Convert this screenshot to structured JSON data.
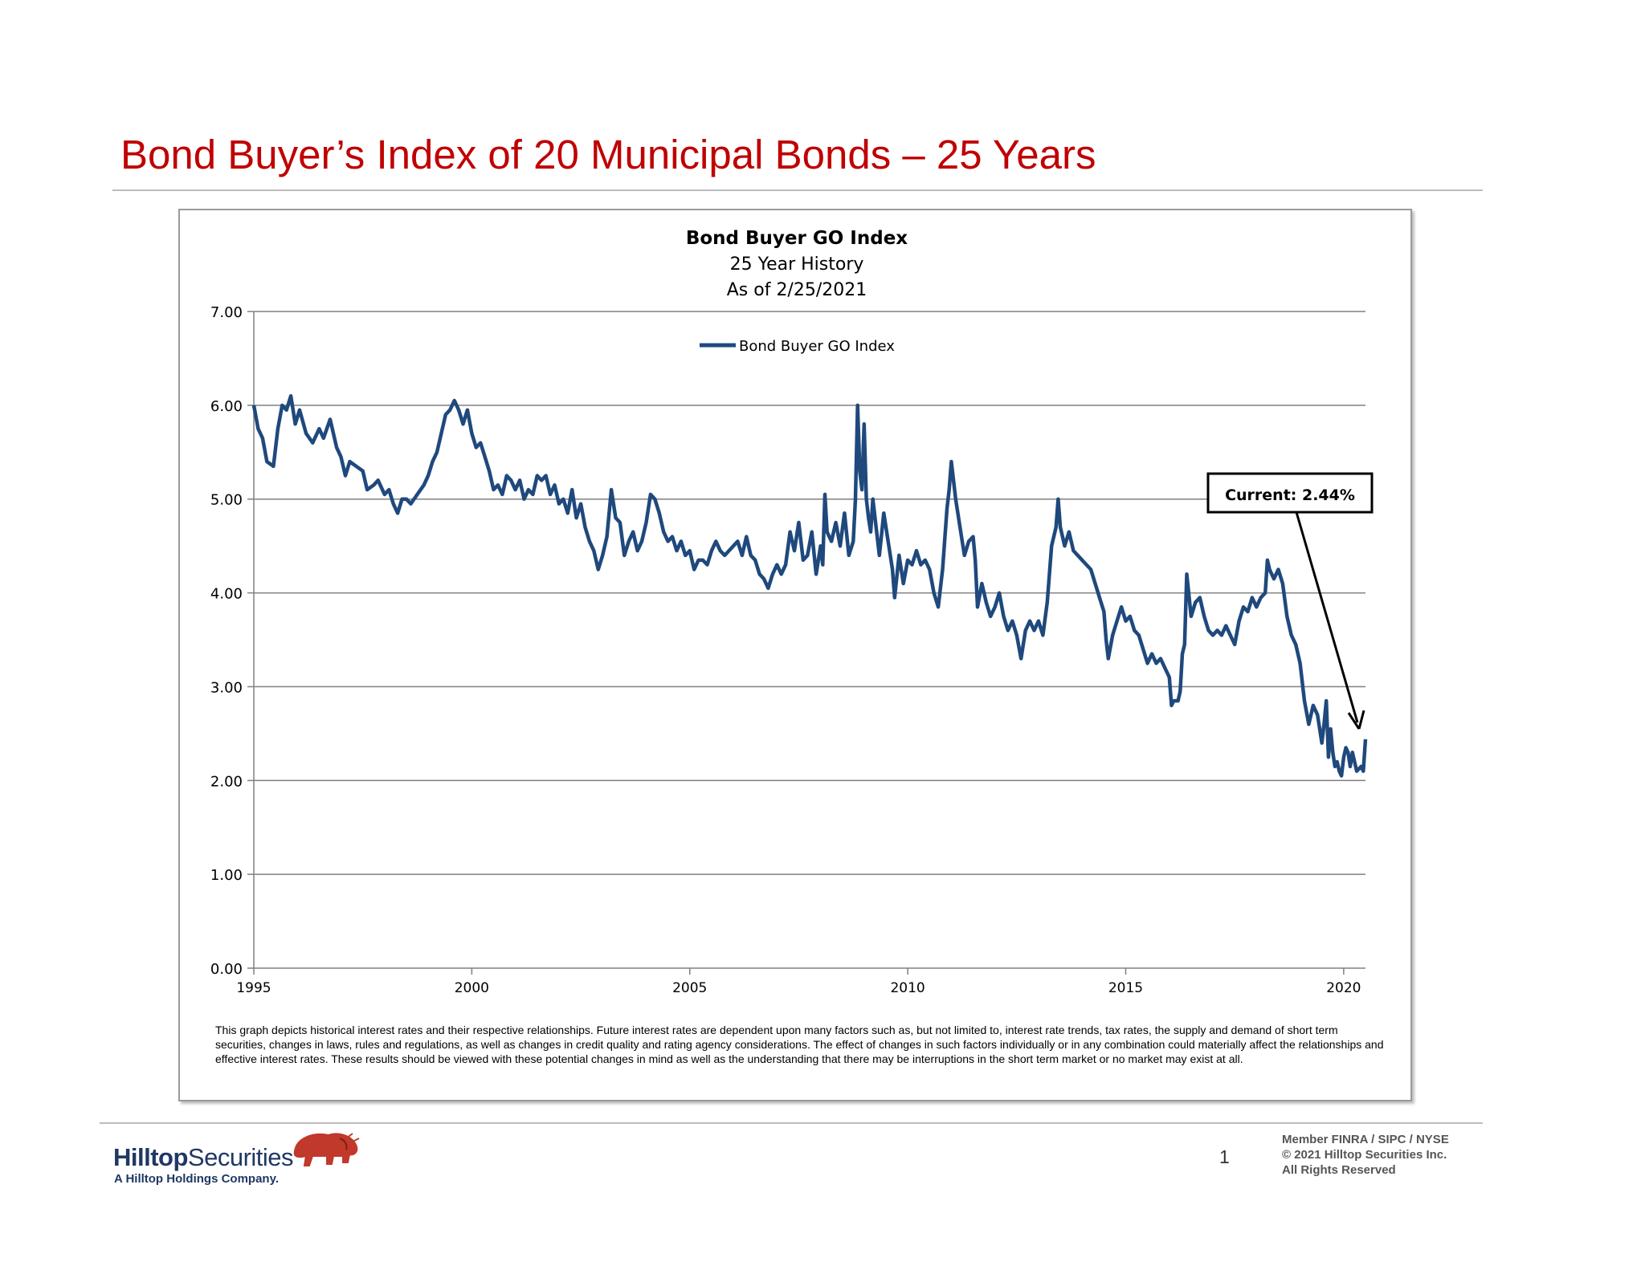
{
  "slide": {
    "title": "Bond Buyer’s Index of 20 Municipal Bonds – 25 Years"
  },
  "chart_data": {
    "type": "line",
    "title": "Bond Buyer GO Index",
    "subtitle_lines": [
      "25 Year History",
      "As of 2/25/2021"
    ],
    "xlabel": "",
    "ylabel": "",
    "xlim": [
      1995,
      2020.5
    ],
    "ylim": [
      0,
      7
    ],
    "x_ticks": [
      "1995",
      "2000",
      "2005",
      "2010",
      "2015",
      "2020"
    ],
    "y_ticks": [
      "0.00",
      "1.00",
      "2.00",
      "3.00",
      "4.00",
      "5.00",
      "6.00",
      "7.00"
    ],
    "grid": true,
    "legend_position": "top-center",
    "series": [
      {
        "name": "Bond Buyer GO Index",
        "color": "#1f497d",
        "points": [
          [
            1995.0,
            6.0
          ],
          [
            1995.1,
            5.75
          ],
          [
            1995.2,
            5.65
          ],
          [
            1995.3,
            5.4
          ],
          [
            1995.45,
            5.35
          ],
          [
            1995.55,
            5.75
          ],
          [
            1995.65,
            6.0
          ],
          [
            1995.75,
            5.95
          ],
          [
            1995.85,
            6.1
          ],
          [
            1995.95,
            5.8
          ],
          [
            1996.05,
            5.95
          ],
          [
            1996.2,
            5.7
          ],
          [
            1996.35,
            5.6
          ],
          [
            1996.5,
            5.75
          ],
          [
            1996.6,
            5.65
          ],
          [
            1996.75,
            5.85
          ],
          [
            1996.9,
            5.55
          ],
          [
            1997.0,
            5.45
          ],
          [
            1997.1,
            5.25
          ],
          [
            1997.2,
            5.4
          ],
          [
            1997.35,
            5.35
          ],
          [
            1997.5,
            5.3
          ],
          [
            1997.6,
            5.1
          ],
          [
            1997.75,
            5.15
          ],
          [
            1997.85,
            5.2
          ],
          [
            1998.0,
            5.05
          ],
          [
            1998.1,
            5.1
          ],
          [
            1998.2,
            4.95
          ],
          [
            1998.3,
            4.85
          ],
          [
            1998.4,
            5.0
          ],
          [
            1998.5,
            5.0
          ],
          [
            1998.6,
            4.95
          ],
          [
            1998.75,
            5.05
          ],
          [
            1998.9,
            5.15
          ],
          [
            1999.0,
            5.25
          ],
          [
            1999.1,
            5.4
          ],
          [
            1999.2,
            5.5
          ],
          [
            1999.3,
            5.7
          ],
          [
            1999.4,
            5.9
          ],
          [
            1999.5,
            5.95
          ],
          [
            1999.6,
            6.05
          ],
          [
            1999.7,
            5.95
          ],
          [
            1999.8,
            5.8
          ],
          [
            1999.9,
            5.95
          ],
          [
            2000.0,
            5.7
          ],
          [
            2000.1,
            5.55
          ],
          [
            2000.2,
            5.6
          ],
          [
            2000.3,
            5.45
          ],
          [
            2000.4,
            5.3
          ],
          [
            2000.5,
            5.1
          ],
          [
            2000.6,
            5.15
          ],
          [
            2000.7,
            5.05
          ],
          [
            2000.8,
            5.25
          ],
          [
            2000.9,
            5.2
          ],
          [
            2001.0,
            5.1
          ],
          [
            2001.1,
            5.2
          ],
          [
            2001.2,
            5.0
          ],
          [
            2001.3,
            5.1
          ],
          [
            2001.4,
            5.05
          ],
          [
            2001.5,
            5.25
          ],
          [
            2001.6,
            5.2
          ],
          [
            2001.7,
            5.25
          ],
          [
            2001.8,
            5.05
          ],
          [
            2001.9,
            5.15
          ],
          [
            2002.0,
            4.95
          ],
          [
            2002.1,
            5.0
          ],
          [
            2002.2,
            4.85
          ],
          [
            2002.3,
            5.1
          ],
          [
            2002.4,
            4.8
          ],
          [
            2002.5,
            4.95
          ],
          [
            2002.6,
            4.7
          ],
          [
            2002.7,
            4.55
          ],
          [
            2002.8,
            4.45
          ],
          [
            2002.9,
            4.25
          ],
          [
            2003.0,
            4.4
          ],
          [
            2003.1,
            4.6
          ],
          [
            2003.2,
            5.1
          ],
          [
            2003.3,
            4.8
          ],
          [
            2003.4,
            4.75
          ],
          [
            2003.5,
            4.4
          ],
          [
            2003.6,
            4.55
          ],
          [
            2003.7,
            4.65
          ],
          [
            2003.8,
            4.45
          ],
          [
            2003.9,
            4.55
          ],
          [
            2004.0,
            4.75
          ],
          [
            2004.1,
            5.05
          ],
          [
            2004.2,
            5.0
          ],
          [
            2004.3,
            4.85
          ],
          [
            2004.4,
            4.65
          ],
          [
            2004.5,
            4.55
          ],
          [
            2004.6,
            4.6
          ],
          [
            2004.7,
            4.45
          ],
          [
            2004.8,
            4.55
          ],
          [
            2004.9,
            4.4
          ],
          [
            2005.0,
            4.45
          ],
          [
            2005.1,
            4.25
          ],
          [
            2005.2,
            4.35
          ],
          [
            2005.3,
            4.35
          ],
          [
            2005.4,
            4.3
          ],
          [
            2005.5,
            4.45
          ],
          [
            2005.6,
            4.55
          ],
          [
            2005.7,
            4.45
          ],
          [
            2005.8,
            4.4
          ],
          [
            2005.9,
            4.45
          ],
          [
            2006.0,
            4.5
          ],
          [
            2006.1,
            4.55
          ],
          [
            2006.2,
            4.4
          ],
          [
            2006.3,
            4.6
          ],
          [
            2006.4,
            4.4
          ],
          [
            2006.5,
            4.35
          ],
          [
            2006.6,
            4.2
          ],
          [
            2006.7,
            4.15
          ],
          [
            2006.8,
            4.05
          ],
          [
            2006.9,
            4.2
          ],
          [
            2007.0,
            4.3
          ],
          [
            2007.1,
            4.2
          ],
          [
            2007.2,
            4.3
          ],
          [
            2007.3,
            4.65
          ],
          [
            2007.4,
            4.45
          ],
          [
            2007.5,
            4.75
          ],
          [
            2007.6,
            4.35
          ],
          [
            2007.7,
            4.4
          ],
          [
            2007.8,
            4.65
          ],
          [
            2007.9,
            4.2
          ],
          [
            2008.0,
            4.5
          ],
          [
            2008.05,
            4.3
          ],
          [
            2008.1,
            5.05
          ],
          [
            2008.15,
            4.65
          ],
          [
            2008.25,
            4.55
          ],
          [
            2008.35,
            4.75
          ],
          [
            2008.45,
            4.5
          ],
          [
            2008.55,
            4.85
          ],
          [
            2008.65,
            4.4
          ],
          [
            2008.75,
            4.55
          ],
          [
            2008.8,
            5.0
          ],
          [
            2008.85,
            6.0
          ],
          [
            2008.9,
            5.3
          ],
          [
            2008.95,
            5.1
          ],
          [
            2009.0,
            5.8
          ],
          [
            2009.05,
            5.0
          ],
          [
            2009.1,
            4.8
          ],
          [
            2009.15,
            4.65
          ],
          [
            2009.2,
            5.0
          ],
          [
            2009.3,
            4.6
          ],
          [
            2009.35,
            4.4
          ],
          [
            2009.45,
            4.85
          ],
          [
            2009.55,
            4.55
          ],
          [
            2009.65,
            4.25
          ],
          [
            2009.7,
            3.95
          ],
          [
            2009.8,
            4.4
          ],
          [
            2009.9,
            4.1
          ],
          [
            2010.0,
            4.35
          ],
          [
            2010.1,
            4.3
          ],
          [
            2010.2,
            4.45
          ],
          [
            2010.3,
            4.3
          ],
          [
            2010.4,
            4.35
          ],
          [
            2010.5,
            4.25
          ],
          [
            2010.6,
            4.0
          ],
          [
            2010.7,
            3.85
          ],
          [
            2010.8,
            4.25
          ],
          [
            2010.9,
            4.9
          ],
          [
            2010.95,
            5.1
          ],
          [
            2011.0,
            5.4
          ],
          [
            2011.1,
            5.0
          ],
          [
            2011.2,
            4.7
          ],
          [
            2011.3,
            4.4
          ],
          [
            2011.4,
            4.55
          ],
          [
            2011.5,
            4.6
          ],
          [
            2011.55,
            4.35
          ],
          [
            2011.6,
            3.85
          ],
          [
            2011.7,
            4.1
          ],
          [
            2011.8,
            3.9
          ],
          [
            2011.9,
            3.75
          ],
          [
            2012.0,
            3.85
          ],
          [
            2012.1,
            4.0
          ],
          [
            2012.2,
            3.75
          ],
          [
            2012.3,
            3.6
          ],
          [
            2012.4,
            3.7
          ],
          [
            2012.5,
            3.55
          ],
          [
            2012.6,
            3.3
          ],
          [
            2012.7,
            3.6
          ],
          [
            2012.8,
            3.7
          ],
          [
            2012.9,
            3.6
          ],
          [
            2013.0,
            3.7
          ],
          [
            2013.1,
            3.55
          ],
          [
            2013.2,
            3.9
          ],
          [
            2013.3,
            4.5
          ],
          [
            2013.4,
            4.7
          ],
          [
            2013.45,
            5.0
          ],
          [
            2013.5,
            4.7
          ],
          [
            2013.6,
            4.5
          ],
          [
            2013.7,
            4.65
          ],
          [
            2013.8,
            4.45
          ],
          [
            2013.9,
            4.4
          ],
          [
            2014.0,
            4.35
          ],
          [
            2014.1,
            4.3
          ],
          [
            2014.2,
            4.25
          ],
          [
            2014.3,
            4.1
          ],
          [
            2014.4,
            3.95
          ],
          [
            2014.5,
            3.8
          ],
          [
            2014.55,
            3.5
          ],
          [
            2014.6,
            3.3
          ],
          [
            2014.7,
            3.55
          ],
          [
            2014.8,
            3.7
          ],
          [
            2014.9,
            3.85
          ],
          [
            2015.0,
            3.7
          ],
          [
            2015.1,
            3.75
          ],
          [
            2015.2,
            3.6
          ],
          [
            2015.3,
            3.55
          ],
          [
            2015.4,
            3.4
          ],
          [
            2015.5,
            3.25
          ],
          [
            2015.6,
            3.35
          ],
          [
            2015.7,
            3.25
          ],
          [
            2015.8,
            3.3
          ],
          [
            2015.9,
            3.2
          ],
          [
            2016.0,
            3.1
          ],
          [
            2016.05,
            2.8
          ],
          [
            2016.1,
            2.85
          ],
          [
            2016.2,
            2.85
          ],
          [
            2016.25,
            2.95
          ],
          [
            2016.3,
            3.35
          ],
          [
            2016.35,
            3.45
          ],
          [
            2016.4,
            4.2
          ],
          [
            2016.5,
            3.75
          ],
          [
            2016.6,
            3.9
          ],
          [
            2016.7,
            3.95
          ],
          [
            2016.8,
            3.75
          ],
          [
            2016.9,
            3.6
          ],
          [
            2017.0,
            3.55
          ],
          [
            2017.1,
            3.6
          ],
          [
            2017.2,
            3.55
          ],
          [
            2017.3,
            3.65
          ],
          [
            2017.4,
            3.55
          ],
          [
            2017.5,
            3.45
          ],
          [
            2017.6,
            3.7
          ],
          [
            2017.7,
            3.85
          ],
          [
            2017.8,
            3.8
          ],
          [
            2017.9,
            3.95
          ],
          [
            2018.0,
            3.85
          ],
          [
            2018.1,
            3.95
          ],
          [
            2018.2,
            4.0
          ],
          [
            2018.25,
            4.35
          ],
          [
            2018.3,
            4.25
          ],
          [
            2018.4,
            4.15
          ],
          [
            2018.5,
            4.25
          ],
          [
            2018.6,
            4.1
          ],
          [
            2018.7,
            3.75
          ],
          [
            2018.8,
            3.55
          ],
          [
            2018.9,
            3.45
          ],
          [
            2019.0,
            3.25
          ],
          [
            2019.1,
            2.85
          ],
          [
            2019.2,
            2.6
          ],
          [
            2019.3,
            2.8
          ],
          [
            2019.4,
            2.7
          ],
          [
            2019.5,
            2.4
          ],
          [
            2019.55,
            2.6
          ],
          [
            2019.6,
            2.85
          ],
          [
            2019.65,
            2.25
          ],
          [
            2019.7,
            2.55
          ],
          [
            2019.75,
            2.3
          ],
          [
            2019.8,
            2.15
          ],
          [
            2019.85,
            2.2
          ],
          [
            2019.9,
            2.1
          ],
          [
            2019.95,
            2.05
          ],
          [
            2020.0,
            2.25
          ],
          [
            2020.05,
            2.35
          ],
          [
            2020.1,
            2.3
          ],
          [
            2020.15,
            2.15
          ],
          [
            2020.2,
            2.3
          ],
          [
            2020.3,
            2.1
          ],
          [
            2020.4,
            2.15
          ],
          [
            2020.45,
            2.1
          ],
          [
            2020.5,
            2.44
          ]
        ]
      }
    ],
    "annotation": {
      "text": "Current: 2.44%",
      "points_to": [
        2020.5,
        2.44
      ]
    },
    "disclaimer": "This graph depicts historical interest rates and their respective relationships.   Future interest rates are dependent upon many factors such as, but not limited to,  interest rate trends, tax rates, the supply and demand of short term securities, changes in laws, rules and regulations,  as well as changes in credit quality and rating agency considerations.  The effect of changes in such factors individually  or in any combination  could materially  affect the relationships and effective interest rates.  These results should be viewed with these potential changes in mind as well as the understanding that there may be interruptions in the short term market or no market may exist at all."
  },
  "footer": {
    "logo_part1": "Hilltop",
    "logo_part2": "Securities",
    "logo_sub": "A Hilltop Holdings Company.",
    "page_number": "1",
    "member_lines": [
      "Member FINRA / SIPC / NYSE",
      "© 2021 Hilltop Securities Inc.",
      "All Rights Reserved"
    ]
  },
  "colors": {
    "title": "#c00000",
    "series": "#1f497d",
    "brand": "#1f3864",
    "bison": "#c0392b"
  }
}
